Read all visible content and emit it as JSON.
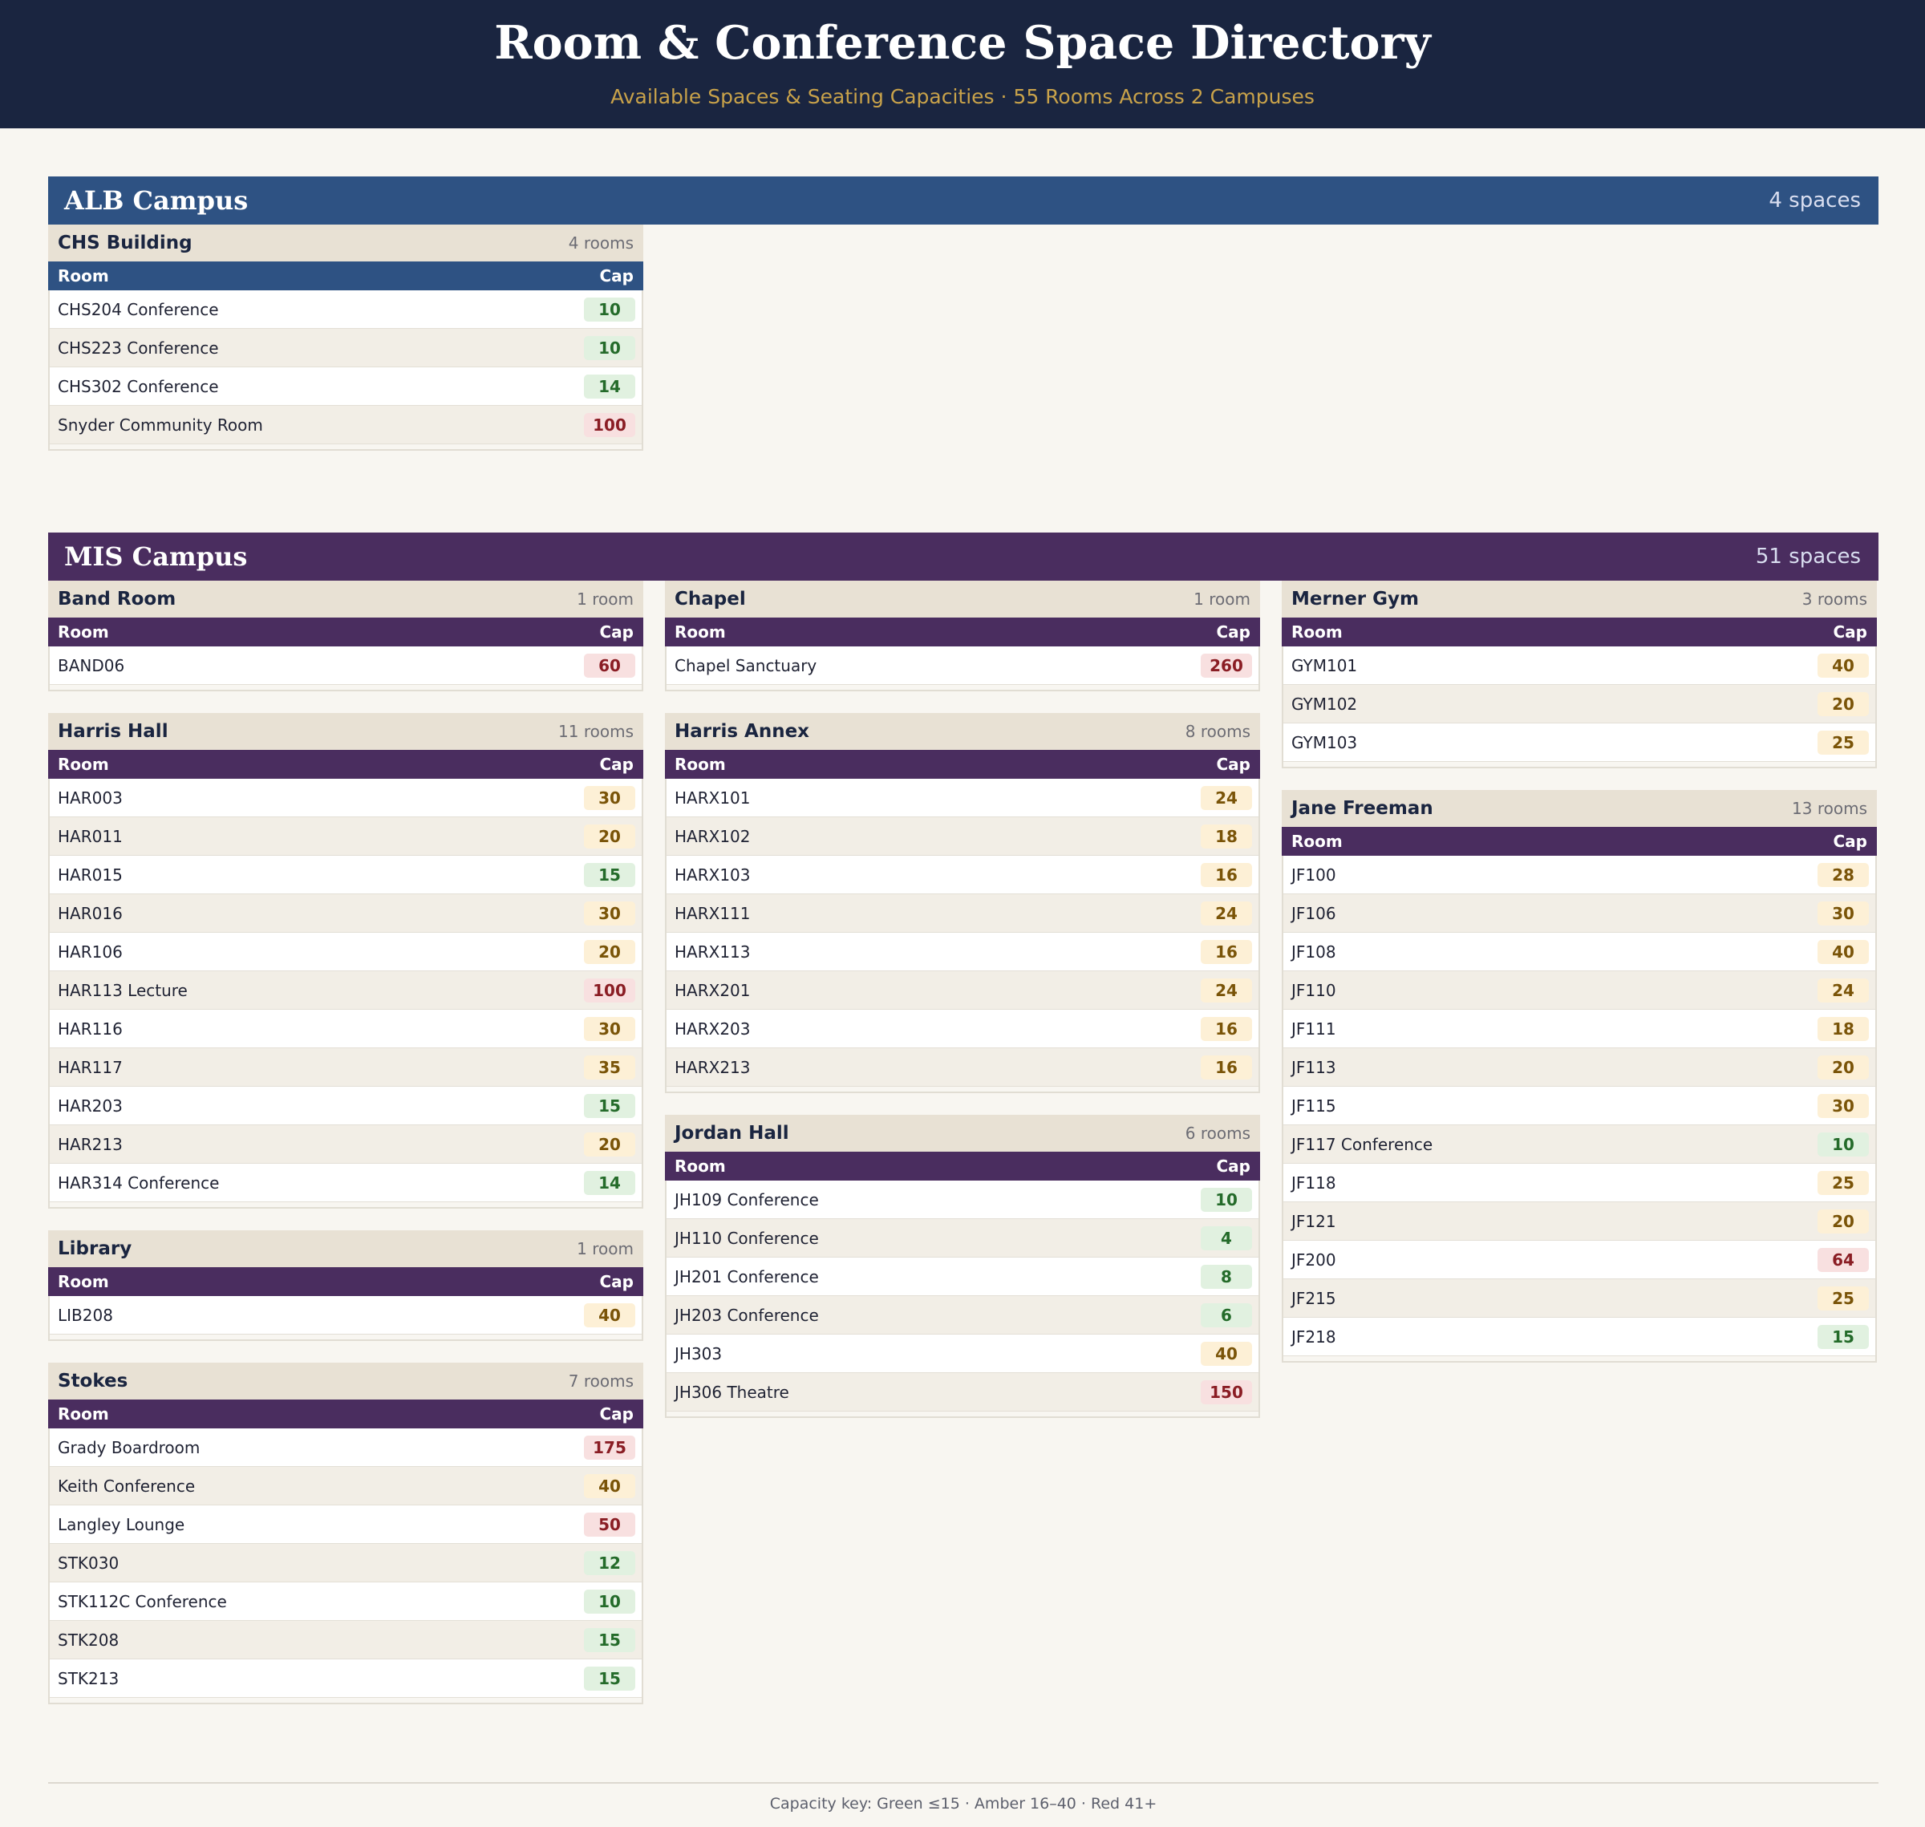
{
  "header": {
    "title": "Room & Conference Space Directory",
    "subtitle": "Available Spaces & Seating Capacities  ·  55 Rooms Across 2 Campuses"
  },
  "columns": {
    "room": "Room",
    "cap": "Cap"
  },
  "colors": {
    "header_bg": "#1a2540",
    "alb_accent": "#2e5283",
    "mis_accent": "#4a2d5f",
    "cap_green": "#246b2a",
    "cap_amber": "#7a5408",
    "cap_red": "#8a1d24"
  },
  "campuses": [
    {
      "name": "ALB Campus",
      "count": "4 spaces",
      "buildings": [
        {
          "name": "CHS Building",
          "count": "4 rooms",
          "rooms": [
            {
              "room": "CHS204 Conference",
              "cap": 10
            },
            {
              "room": "CHS223 Conference",
              "cap": 10
            },
            {
              "room": "CHS302 Conference",
              "cap": 14
            },
            {
              "room": "Snyder Community Room",
              "cap": 100
            }
          ]
        }
      ]
    },
    {
      "name": "MIS Campus",
      "count": "51 spaces",
      "buildings": [
        {
          "name": "Band Room",
          "count": "1 room",
          "rooms": [
            {
              "room": "BAND06",
              "cap": 60
            }
          ]
        },
        {
          "name": "Chapel",
          "count": "1 room",
          "rooms": [
            {
              "room": "Chapel Sanctuary",
              "cap": 260
            }
          ]
        },
        {
          "name": "Merner Gym",
          "count": "3 rooms",
          "rooms": [
            {
              "room": "GYM101",
              "cap": 40
            },
            {
              "room": "GYM102",
              "cap": 20
            },
            {
              "room": "GYM103",
              "cap": 25
            }
          ]
        },
        {
          "name": "Harris Hall",
          "count": "11 rooms",
          "rooms": [
            {
              "room": "HAR003",
              "cap": 30
            },
            {
              "room": "HAR011",
              "cap": 20
            },
            {
              "room": "HAR015",
              "cap": 15
            },
            {
              "room": "HAR016",
              "cap": 30
            },
            {
              "room": "HAR106",
              "cap": 20
            },
            {
              "room": "HAR113 Lecture",
              "cap": 100
            },
            {
              "room": "HAR116",
              "cap": 30
            },
            {
              "room": "HAR117",
              "cap": 35
            },
            {
              "room": "HAR203",
              "cap": 15
            },
            {
              "room": "HAR213",
              "cap": 20
            },
            {
              "room": "HAR314 Conference",
              "cap": 14
            }
          ]
        },
        {
          "name": "Harris Annex",
          "count": "8 rooms",
          "rooms": [
            {
              "room": "HARX101",
              "cap": 24
            },
            {
              "room": "HARX102",
              "cap": 18
            },
            {
              "room": "HARX103",
              "cap": 16
            },
            {
              "room": "HARX111",
              "cap": 24
            },
            {
              "room": "HARX113",
              "cap": 16
            },
            {
              "room": "HARX201",
              "cap": 24
            },
            {
              "room": "HARX203",
              "cap": 16
            },
            {
              "room": "HARX213",
              "cap": 16
            }
          ]
        },
        {
          "name": "Jane Freeman",
          "count": "13 rooms",
          "rooms": [
            {
              "room": "JF100",
              "cap": 28
            },
            {
              "room": "JF106",
              "cap": 30
            },
            {
              "room": "JF108",
              "cap": 40
            },
            {
              "room": "JF110",
              "cap": 24
            },
            {
              "room": "JF111",
              "cap": 18
            },
            {
              "room": "JF113",
              "cap": 20
            },
            {
              "room": "JF115",
              "cap": 30
            },
            {
              "room": "JF117 Conference",
              "cap": 10
            },
            {
              "room": "JF118",
              "cap": 25
            },
            {
              "room": "JF121",
              "cap": 20
            },
            {
              "room": "JF200",
              "cap": 64
            },
            {
              "room": "JF215",
              "cap": 25
            },
            {
              "room": "JF218",
              "cap": 15
            }
          ]
        },
        {
          "name": "Library",
          "count": "1 room",
          "rooms": [
            {
              "room": "LIB208",
              "cap": 40
            }
          ]
        },
        {
          "name": "Jordan Hall",
          "count": "6 rooms",
          "rooms": [
            {
              "room": "JH109 Conference",
              "cap": 10
            },
            {
              "room": "JH110 Conference",
              "cap": 4
            },
            {
              "room": "JH201 Conference",
              "cap": 8
            },
            {
              "room": "JH203 Conference",
              "cap": 6
            },
            {
              "room": "JH303",
              "cap": 40
            },
            {
              "room": "JH306 Theatre",
              "cap": 150
            }
          ]
        },
        {
          "name": "Stokes",
          "count": "7 rooms",
          "rooms": [
            {
              "room": "Grady Boardroom",
              "cap": 175
            },
            {
              "room": "Keith Conference",
              "cap": 40
            },
            {
              "room": "Langley Lounge",
              "cap": 50
            },
            {
              "room": "STK030",
              "cap": 12
            },
            {
              "room": "STK112C Conference",
              "cap": 10
            },
            {
              "room": "STK208",
              "cap": 15
            },
            {
              "room": "STK213",
              "cap": 15
            }
          ]
        }
      ]
    }
  ],
  "footer": {
    "text": "Capacity key:  Green ≤15  ·  Amber 16–40  ·  Red 41+"
  }
}
